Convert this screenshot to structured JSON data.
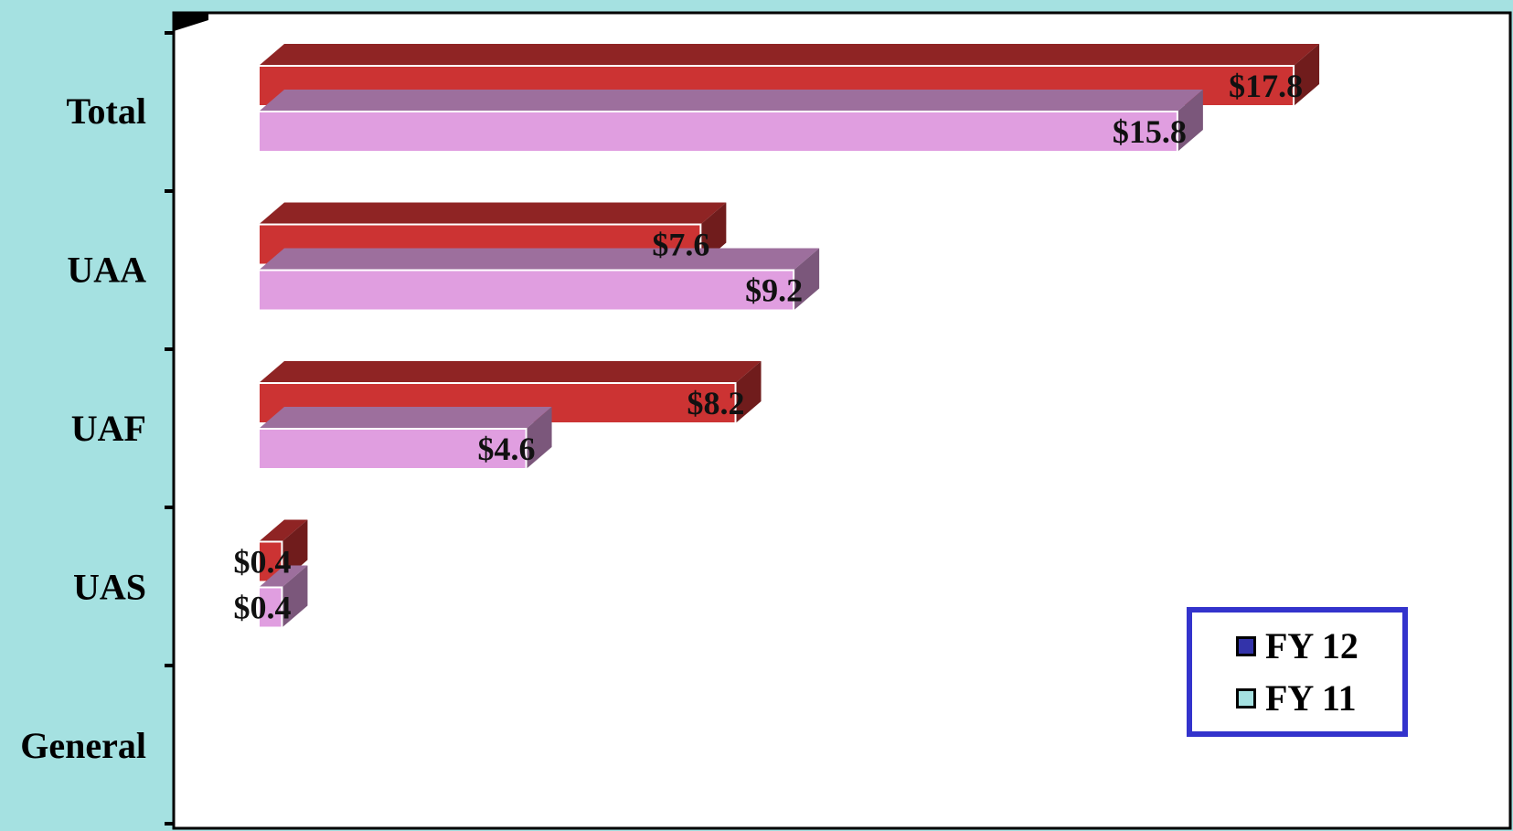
{
  "chart_data": {
    "type": "bar",
    "orientation": "horizontal",
    "categories": [
      "Total",
      "UAA",
      "UAF",
      "UAS",
      "General"
    ],
    "series": [
      {
        "name": "FY 12",
        "color": "#cc3333",
        "values": [
          17.8,
          7.6,
          8.2,
          0.4,
          null
        ]
      },
      {
        "name": "FY 11",
        "color": "#e09ee0",
        "values": [
          15.8,
          9.2,
          4.6,
          0.4,
          null
        ]
      }
    ],
    "data_labels": {
      "Total": [
        "$17.8",
        "$15.8"
      ],
      "UAA": [
        "$7.6",
        "$9.2"
      ],
      "UAF": [
        "$8.2",
        "$4.6"
      ],
      "UAS": [
        "$0.4",
        "$0.4"
      ]
    },
    "xlim": [
      0,
      20
    ],
    "legend": {
      "placement": "bottom-right",
      "entries": [
        {
          "label": "FY 12",
          "swatch": "#3333aa"
        },
        {
          "label": "FY 11",
          "swatch": "#a5e1e1"
        }
      ]
    },
    "colors": {
      "background": "#a5e1e1",
      "plot": "#ffffff",
      "legend_border": "#3333cc"
    }
  }
}
